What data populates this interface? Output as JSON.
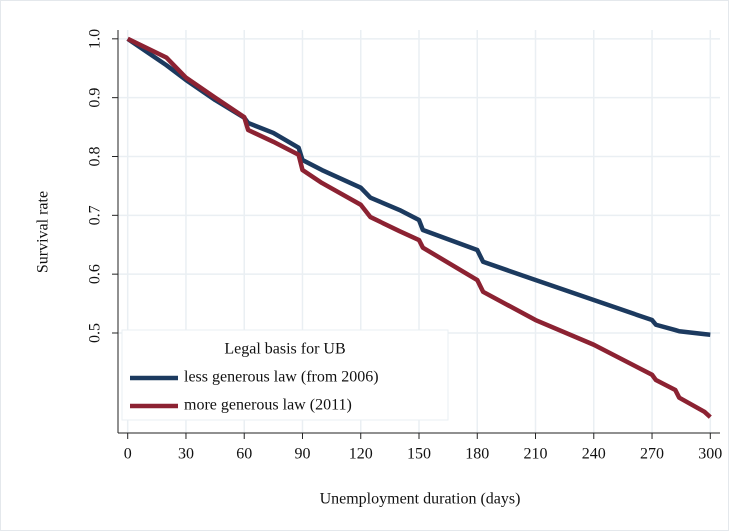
{
  "chart_data": {
    "type": "line",
    "x_label": "Unemployment duration (days)",
    "y_label": "Survival rate",
    "x": [
      0,
      20,
      30,
      45,
      60,
      62,
      75,
      88,
      90,
      100,
      120,
      125,
      140,
      150,
      152,
      180,
      183,
      210,
      240,
      270,
      272,
      282,
      284,
      297,
      300
    ],
    "series": [
      {
        "name": "less generous law (from 2006)",
        "color": "#1c3a5f",
        "values": [
          1.0,
          0.955,
          0.93,
          0.896,
          0.866,
          0.857,
          0.84,
          0.815,
          0.794,
          0.777,
          0.747,
          0.73,
          0.709,
          0.692,
          0.675,
          0.641,
          0.621,
          0.59,
          0.556,
          0.522,
          0.514,
          0.505,
          0.503,
          0.498,
          0.497
        ]
      },
      {
        "name": "more generous law (2011)",
        "color": "#8c2232",
        "values": [
          1.0,
          0.968,
          0.934,
          0.9,
          0.867,
          0.845,
          0.825,
          0.803,
          0.777,
          0.755,
          0.718,
          0.697,
          0.673,
          0.658,
          0.645,
          0.59,
          0.57,
          0.522,
          0.48,
          0.429,
          0.42,
          0.403,
          0.39,
          0.366,
          0.357
        ]
      }
    ],
    "legend_title": "Legal basis for UB",
    "legend_position": "lower left",
    "xlim": [
      -5,
      305
    ],
    "ylim": [
      0.33,
      1.015
    ],
    "xticks": [
      0,
      30,
      60,
      90,
      120,
      150,
      180,
      210,
      240,
      270,
      300
    ],
    "yticks": [
      0.5,
      0.6,
      0.7,
      0.8,
      0.9,
      {
        "value": 1,
        "label": "1.0"
      }
    ],
    "grid": true
  }
}
